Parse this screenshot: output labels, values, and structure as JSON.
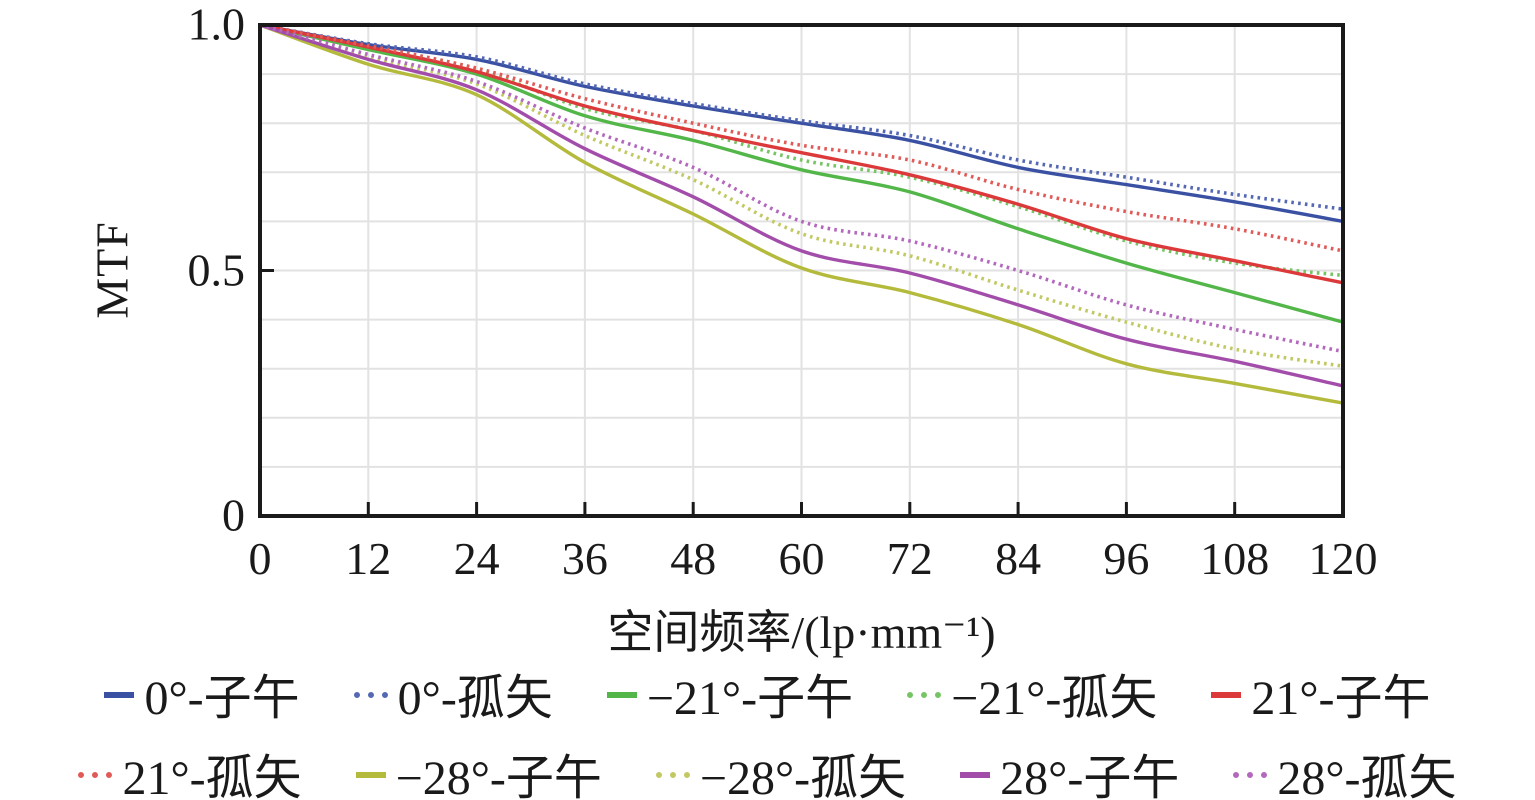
{
  "figure": {
    "background": "#ffffff",
    "axis_color": "#1a1a1a",
    "grid_color": "#e2e2e2"
  },
  "chart_data": {
    "type": "line",
    "title": "",
    "xlabel": "空间频率/(lp·mm⁻¹)",
    "ylabel": "MTF",
    "xlim": [
      0,
      120
    ],
    "ylim": [
      0,
      1.0
    ],
    "grid": {
      "on": true,
      "x_step": 12,
      "y_step": 0.1,
      "color": "#e2e2e2"
    },
    "legend_position": "bottom",
    "x": [
      0,
      12,
      24,
      36,
      48,
      60,
      72,
      84,
      96,
      108,
      120
    ],
    "x_ticks": [
      "0",
      "12",
      "24",
      "36",
      "48",
      "60",
      "72",
      "84",
      "96",
      "108",
      "120"
    ],
    "y_ticks": [
      1.0,
      0.5,
      0
    ],
    "y_tick_labels": [
      "1.0",
      "0.5",
      "0"
    ],
    "series": [
      {
        "label": "0°-子午",
        "style": "solid",
        "color": "#3a51a3",
        "values": [
          1.0,
          0.96,
          0.93,
          0.875,
          0.835,
          0.8,
          0.765,
          0.71,
          0.675,
          0.64,
          0.6
        ]
      },
      {
        "label": "0°-孤矢",
        "style": "dotted",
        "color": "#5568b4",
        "values": [
          1.0,
          0.962,
          0.935,
          0.88,
          0.84,
          0.805,
          0.775,
          0.725,
          0.69,
          0.655,
          0.625
        ]
      },
      {
        "label": "−21°-子午",
        "style": "solid",
        "color": "#53b649",
        "values": [
          1.0,
          0.95,
          0.9,
          0.815,
          0.765,
          0.705,
          0.66,
          0.585,
          0.515,
          0.455,
          0.395
        ]
      },
      {
        "label": "−21°-孤矢",
        "style": "dotted",
        "color": "#77c465",
        "values": [
          1.0,
          0.955,
          0.91,
          0.83,
          0.785,
          0.725,
          0.69,
          0.63,
          0.56,
          0.515,
          0.49
        ]
      },
      {
        "label": "21°-子午",
        "style": "solid",
        "color": "#dc393b",
        "values": [
          1.0,
          0.955,
          0.905,
          0.835,
          0.785,
          0.74,
          0.695,
          0.635,
          0.565,
          0.52,
          0.475
        ]
      },
      {
        "label": "21°-孤矢",
        "style": "dotted",
        "color": "#e05a58",
        "values": [
          1.0,
          0.958,
          0.912,
          0.85,
          0.8,
          0.755,
          0.725,
          0.665,
          0.62,
          0.585,
          0.54
        ]
      },
      {
        "label": "−28°-子午",
        "style": "solid",
        "color": "#b4ba3b",
        "values": [
          1.0,
          0.92,
          0.858,
          0.72,
          0.615,
          0.505,
          0.455,
          0.39,
          0.31,
          0.27,
          0.23
        ]
      },
      {
        "label": "−28°-孤矢",
        "style": "dotted",
        "color": "#c2c963",
        "values": [
          1.0,
          0.935,
          0.88,
          0.775,
          0.685,
          0.575,
          0.53,
          0.46,
          0.395,
          0.34,
          0.305
        ]
      },
      {
        "label": "28°-子午",
        "style": "solid",
        "color": "#a34dab",
        "values": [
          1.0,
          0.93,
          0.868,
          0.748,
          0.65,
          0.54,
          0.495,
          0.43,
          0.36,
          0.315,
          0.265
        ]
      },
      {
        "label": "28°-孤矢",
        "style": "dotted",
        "color": "#b368bd",
        "values": [
          1.0,
          0.94,
          0.885,
          0.79,
          0.71,
          0.6,
          0.56,
          0.5,
          0.43,
          0.38,
          0.335
        ]
      }
    ]
  }
}
